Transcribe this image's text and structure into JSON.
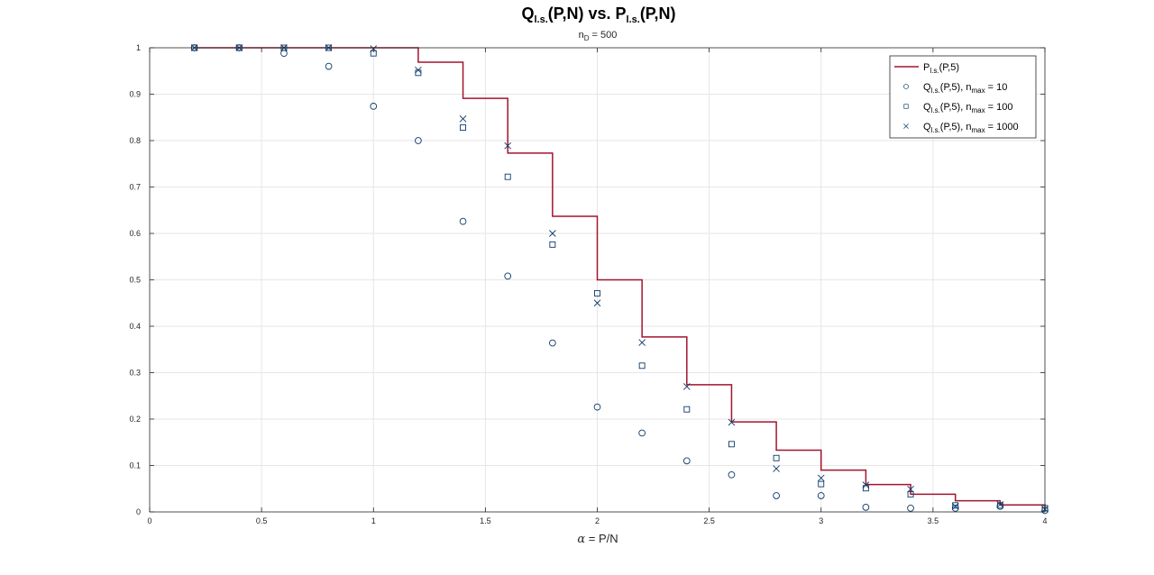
{
  "chart_data": {
    "type": "scatter",
    "title": "Q",
    "title_parts": [
      "Q",
      "l.s.",
      "(P,N) vs. P",
      "l.s.",
      "(P,N)"
    ],
    "subtitle_parts": [
      "n",
      "D",
      " = 500"
    ],
    "xlabel_parts": [
      "α",
      " = P/N"
    ],
    "xlim": [
      0,
      4
    ],
    "ylim": [
      0,
      1
    ],
    "xticks": [
      0,
      0.5,
      1,
      1.5,
      2,
      2.5,
      3,
      3.5,
      4
    ],
    "xtick_labels": [
      "0",
      "0.5",
      "1",
      "1.5",
      "2",
      "2.5",
      "3",
      "3.5",
      "4"
    ],
    "yticks": [
      0,
      0.1,
      0.2,
      0.3,
      0.4,
      0.5,
      0.6,
      0.7,
      0.8,
      0.9,
      1
    ],
    "ytick_labels": [
      "0",
      "0.1",
      "0.2",
      "0.3",
      "0.4",
      "0.5",
      "0.6",
      "0.7",
      "0.8",
      "0.9",
      "1"
    ],
    "grid": true,
    "legend_position": "top-right",
    "colors": {
      "step": "#a2142f",
      "markers": "#0c3a6b",
      "grid": "#e6e6e6",
      "axes": "#262626"
    },
    "step_series": {
      "legend_parts": [
        "P",
        "l.s.",
        "(P,5)"
      ],
      "x": [
        0.2,
        0.4,
        0.6,
        0.8,
        1.0,
        1.2,
        1.4,
        1.6,
        1.8,
        2.0,
        2.2,
        2.4,
        2.6,
        2.8,
        3.0,
        3.2,
        3.4,
        3.6,
        3.8,
        4.0
      ],
      "y": [
        1.0,
        1.0,
        1.0,
        1.0,
        1.0,
        0.969,
        0.891,
        0.773,
        0.637,
        0.5,
        0.377,
        0.274,
        0.194,
        0.133,
        0.09,
        0.059,
        0.038,
        0.024,
        0.015,
        0.01
      ]
    },
    "series": [
      {
        "marker": "circle",
        "legend_parts": [
          "Q",
          "l.s.",
          "(P,5), n",
          "max",
          " = 10"
        ],
        "x": [
          0.2,
          0.4,
          0.6,
          0.8,
          1.0,
          1.2,
          1.4,
          1.6,
          1.8,
          2.0,
          2.2,
          2.4,
          2.6,
          2.8,
          3.0,
          3.2,
          3.4,
          3.6,
          3.8,
          4.0
        ],
        "y": [
          1.0,
          1.0,
          0.988,
          0.96,
          0.874,
          0.8,
          0.626,
          0.508,
          0.364,
          0.226,
          0.17,
          0.11,
          0.08,
          0.035,
          0.035,
          0.01,
          0.008,
          0.008,
          0.012,
          0.003
        ]
      },
      {
        "marker": "square",
        "legend_parts": [
          "Q",
          "l.s.",
          "(P,5), n",
          "max",
          " = 100"
        ],
        "x": [
          0.2,
          0.4,
          0.6,
          0.8,
          1.0,
          1.2,
          1.4,
          1.6,
          1.8,
          2.0,
          2.2,
          2.4,
          2.6,
          2.8,
          3.0,
          3.2,
          3.4,
          3.6,
          3.8,
          4.0
        ],
        "y": [
          1.0,
          1.0,
          1.0,
          1.0,
          0.988,
          0.946,
          0.828,
          0.722,
          0.576,
          0.471,
          0.315,
          0.221,
          0.146,
          0.116,
          0.06,
          0.051,
          0.038,
          0.014,
          0.014,
          0.008
        ]
      },
      {
        "marker": "x",
        "legend_parts": [
          "Q",
          "l.s.",
          "(P,5), n",
          "max",
          " = 1000"
        ],
        "x": [
          0.2,
          0.4,
          0.6,
          0.8,
          1.0,
          1.2,
          1.4,
          1.6,
          1.8,
          2.0,
          2.2,
          2.4,
          2.6,
          2.8,
          3.0,
          3.2,
          3.4,
          3.6,
          3.8,
          4.0
        ],
        "y": [
          1.0,
          1.0,
          1.0,
          1.0,
          0.998,
          0.952,
          0.847,
          0.789,
          0.6,
          0.45,
          0.365,
          0.27,
          0.193,
          0.093,
          0.073,
          0.058,
          0.049,
          0.012,
          0.016,
          0.006
        ]
      }
    ]
  }
}
